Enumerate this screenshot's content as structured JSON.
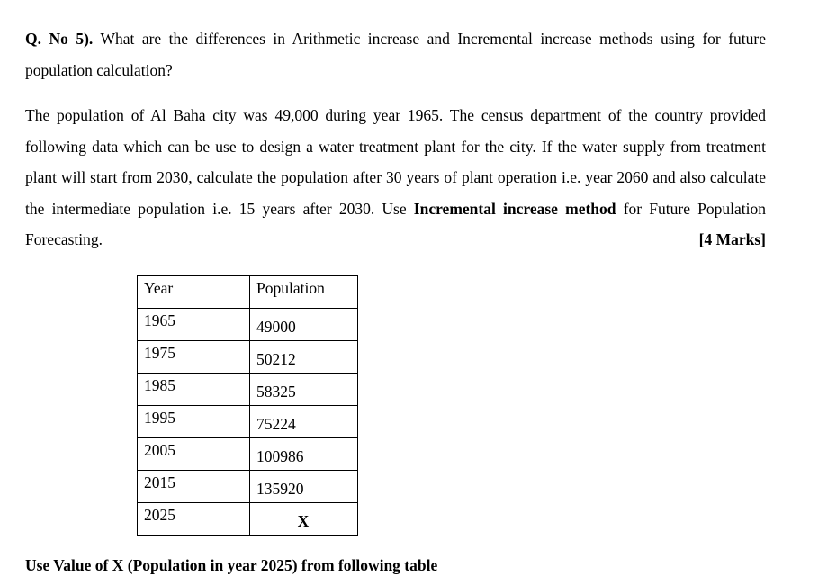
{
  "question": {
    "number": "Q. No 5).",
    "text": "What are the differences in Arithmetic increase and Incremental increase methods using for future population calculation?"
  },
  "paragraph": {
    "part1": "The population of Al Baha city was 49,000 during year 1965. The census department of the country provided following data which can be use to design a water treatment plant for the city. If the water supply from treatment plant will start from 2030, calculate the population after 30 years of plant operation i.e. year 2060 and also calculate the intermediate population i.e. 15 years after 2030. Use",
    "bold_phrase": "Incremental increase method",
    "part2": "for Future Population Forecasting.",
    "marks": "[4 Marks]"
  },
  "table": {
    "headers": [
      "Year",
      "Population"
    ],
    "rows": [
      {
        "year": "1965",
        "population": "49000"
      },
      {
        "year": "1975",
        "population": "50212"
      },
      {
        "year": "1985",
        "population": "58325"
      },
      {
        "year": "1995",
        "population": "75224"
      },
      {
        "year": "2005",
        "population": "100986"
      },
      {
        "year": "2015",
        "population": "135920"
      },
      {
        "year": "2025",
        "population": "X"
      }
    ]
  },
  "footer_note": "Use Value of X (Population in year 2025) from following table"
}
